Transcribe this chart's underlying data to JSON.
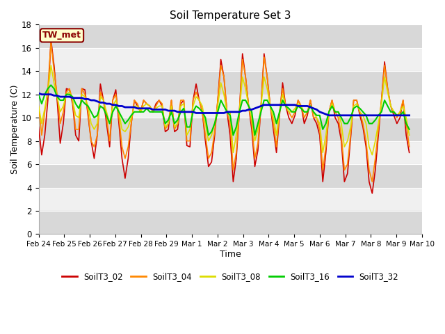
{
  "title": "Soil Temperature Set 3",
  "xlabel": "Time",
  "ylabel": "Soil Temperature (C)",
  "ylim": [
    0,
    18
  ],
  "yticks": [
    0,
    2,
    4,
    6,
    8,
    10,
    12,
    14,
    16,
    18
  ],
  "legend_label": "TW_met",
  "legend_box_color": "#ffffcc",
  "legend_box_edge": "#8b0000",
  "series_colors": {
    "SoilT3_02": "#cc0000",
    "SoilT3_04": "#ff8800",
    "SoilT3_08": "#dddd00",
    "SoilT3_16": "#00cc00",
    "SoilT3_32": "#0000cc"
  },
  "xtick_labels": [
    "Feb 24",
    "Feb 25",
    "Feb 26",
    "Feb 27",
    "Feb 28",
    "Feb 29",
    "Mar 1",
    "Mar 2",
    "Mar 3",
    "Mar 4",
    "Mar 5",
    "Mar 6",
    "Mar 7",
    "Mar 8",
    "Mar 9",
    "Mar 10"
  ],
  "SoilT3_02": [
    9.2,
    6.8,
    8.5,
    11.5,
    16.7,
    14.5,
    11.5,
    7.8,
    9.5,
    12.5,
    12.4,
    11.2,
    8.5,
    8.0,
    12.5,
    12.4,
    10.2,
    8.0,
    6.5,
    8.5,
    12.9,
    11.5,
    9.5,
    7.5,
    11.5,
    12.4,
    9.5,
    6.5,
    4.8,
    6.5,
    9.5,
    11.5,
    11.0,
    10.5,
    11.5,
    11.2,
    11.0,
    10.5,
    11.2,
    11.5,
    11.0,
    8.8,
    9.0,
    11.5,
    8.8,
    9.0,
    11.2,
    11.5,
    7.6,
    7.5,
    11.5,
    12.9,
    11.5,
    10.5,
    8.0,
    5.8,
    6.2,
    8.5,
    11.5,
    15.0,
    13.5,
    10.5,
    8.5,
    4.5,
    6.5,
    10.5,
    15.5,
    13.5,
    11.0,
    9.0,
    5.8,
    7.2,
    11.0,
    15.5,
    13.5,
    11.0,
    9.0,
    7.0,
    10.2,
    13.0,
    11.0,
    10.0,
    9.5,
    10.2,
    11.5,
    11.0,
    9.5,
    10.2,
    11.5,
    10.0,
    9.5,
    8.5,
    4.5,
    7.0,
    10.5,
    11.5,
    10.0,
    9.5,
    8.0,
    4.5,
    5.2,
    8.2,
    11.5,
    11.5,
    10.2,
    9.2,
    7.5,
    4.5,
    3.5,
    5.5,
    8.5,
    11.5,
    14.8,
    12.5,
    11.0,
    10.2,
    9.5,
    10.0,
    11.5,
    8.5,
    7.0
  ],
  "SoilT3_04": [
    11.0,
    8.5,
    10.5,
    12.5,
    16.5,
    14.0,
    12.0,
    9.5,
    10.5,
    12.2,
    12.5,
    11.5,
    9.0,
    9.0,
    12.5,
    12.0,
    10.5,
    8.0,
    7.5,
    8.5,
    12.2,
    11.5,
    10.0,
    8.0,
    11.5,
    12.0,
    10.0,
    7.5,
    6.5,
    7.5,
    9.5,
    11.5,
    11.2,
    10.5,
    11.5,
    11.2,
    11.0,
    10.5,
    11.0,
    11.5,
    11.2,
    9.0,
    9.5,
    11.5,
    9.0,
    9.5,
    11.5,
    11.5,
    8.0,
    8.0,
    11.5,
    12.2,
    11.5,
    10.5,
    8.5,
    6.5,
    7.0,
    8.8,
    11.5,
    14.5,
    13.5,
    10.5,
    9.5,
    5.5,
    7.0,
    10.5,
    15.0,
    13.5,
    11.0,
    9.5,
    6.5,
    7.8,
    11.0,
    15.2,
    13.5,
    11.0,
    9.5,
    7.5,
    10.5,
    12.5,
    11.0,
    10.5,
    10.0,
    10.5,
    11.5,
    11.0,
    10.0,
    10.5,
    11.5,
    10.0,
    10.0,
    9.0,
    5.5,
    7.5,
    10.5,
    11.5,
    10.5,
    10.0,
    8.5,
    5.5,
    6.0,
    8.5,
    11.5,
    11.5,
    10.5,
    9.5,
    8.0,
    5.5,
    4.5,
    6.5,
    9.0,
    11.5,
    14.5,
    12.5,
    11.0,
    10.5,
    10.0,
    10.5,
    11.5,
    9.5,
    7.5
  ],
  "SoilT3_08": [
    11.0,
    9.5,
    10.8,
    12.2,
    14.5,
    13.0,
    11.8,
    10.5,
    11.0,
    12.0,
    12.2,
    11.5,
    10.2,
    10.0,
    12.0,
    11.8,
    11.0,
    9.5,
    9.0,
    9.5,
    11.8,
    11.5,
    10.5,
    9.5,
    11.0,
    11.5,
    10.5,
    9.0,
    8.8,
    9.2,
    10.0,
    11.0,
    11.0,
    10.5,
    11.0,
    11.2,
    11.0,
    10.5,
    10.8,
    11.0,
    11.0,
    9.2,
    9.5,
    11.0,
    9.2,
    9.5,
    11.0,
    11.2,
    8.5,
    9.0,
    11.0,
    11.8,
    11.5,
    11.0,
    9.5,
    8.0,
    8.5,
    9.5,
    11.0,
    13.0,
    12.0,
    10.5,
    10.5,
    7.0,
    8.5,
    10.5,
    13.5,
    12.5,
    11.0,
    10.0,
    8.0,
    9.0,
    11.0,
    13.5,
    12.5,
    11.0,
    10.0,
    8.5,
    10.5,
    12.0,
    11.0,
    10.5,
    10.5,
    10.8,
    11.2,
    11.0,
    10.5,
    10.5,
    11.0,
    10.5,
    10.0,
    9.5,
    7.0,
    8.5,
    10.5,
    11.2,
    10.5,
    10.5,
    9.5,
    7.5,
    8.0,
    9.2,
    11.0,
    11.2,
    10.5,
    10.2,
    9.5,
    7.5,
    6.8,
    8.0,
    9.5,
    11.2,
    13.5,
    12.2,
    11.0,
    10.5,
    10.2,
    10.5,
    11.0,
    10.0,
    8.5
  ],
  "SoilT3_16": [
    12.0,
    11.2,
    12.0,
    12.5,
    12.8,
    12.5,
    11.8,
    11.5,
    11.5,
    12.0,
    12.0,
    11.8,
    11.2,
    10.8,
    11.5,
    11.2,
    11.0,
    10.5,
    10.0,
    10.2,
    11.0,
    10.8,
    10.2,
    9.5,
    10.5,
    11.0,
    10.5,
    10.0,
    9.5,
    9.8,
    10.2,
    10.5,
    10.5,
    10.5,
    10.5,
    10.8,
    10.5,
    10.5,
    10.5,
    10.5,
    10.5,
    9.5,
    9.8,
    10.5,
    9.5,
    9.8,
    10.5,
    10.8,
    9.2,
    9.2,
    10.5,
    11.0,
    10.8,
    10.5,
    10.0,
    8.5,
    8.8,
    9.5,
    10.5,
    11.5,
    11.0,
    10.5,
    10.2,
    8.5,
    9.2,
    10.5,
    11.5,
    11.5,
    11.0,
    10.5,
    8.5,
    9.5,
    10.5,
    11.5,
    11.5,
    11.0,
    10.5,
    9.5,
    10.5,
    11.5,
    11.0,
    10.8,
    10.5,
    10.5,
    11.0,
    10.8,
    10.5,
    10.5,
    11.0,
    10.5,
    10.2,
    10.2,
    9.0,
    9.5,
    10.5,
    11.0,
    10.5,
    10.5,
    10.0,
    9.5,
    9.5,
    10.0,
    10.8,
    11.0,
    10.8,
    10.5,
    10.2,
    9.5,
    9.5,
    9.8,
    10.2,
    10.5,
    11.5,
    11.0,
    10.5,
    10.5,
    10.2,
    10.2,
    10.5,
    9.5,
    9.0
  ],
  "SoilT3_32": [
    12.1,
    12.0,
    12.0,
    12.0,
    12.0,
    11.9,
    11.9,
    11.8,
    11.8,
    11.8,
    11.8,
    11.7,
    11.7,
    11.7,
    11.7,
    11.6,
    11.6,
    11.5,
    11.5,
    11.4,
    11.3,
    11.3,
    11.2,
    11.2,
    11.1,
    11.1,
    11.0,
    11.0,
    10.9,
    10.9,
    10.9,
    10.9,
    10.8,
    10.8,
    10.8,
    10.8,
    10.8,
    10.7,
    10.7,
    10.7,
    10.7,
    10.7,
    10.6,
    10.6,
    10.6,
    10.5,
    10.5,
    10.5,
    10.5,
    10.5,
    10.5,
    10.4,
    10.4,
    10.4,
    10.4,
    10.4,
    10.4,
    10.4,
    10.4,
    10.4,
    10.4,
    10.5,
    10.5,
    10.5,
    10.5,
    10.5,
    10.6,
    10.6,
    10.7,
    10.7,
    10.8,
    10.9,
    11.0,
    11.1,
    11.1,
    11.1,
    11.1,
    11.1,
    11.1,
    11.1,
    11.1,
    11.1,
    11.1,
    11.1,
    11.0,
    11.0,
    11.0,
    11.0,
    10.9,
    10.8,
    10.7,
    10.5,
    10.4,
    10.3,
    10.2,
    10.2,
    10.2,
    10.2,
    10.2,
    10.2,
    10.2,
    10.2,
    10.2,
    10.2,
    10.2,
    10.2,
    10.2,
    10.2,
    10.2,
    10.2,
    10.2,
    10.2,
    10.2,
    10.2,
    10.2,
    10.2,
    10.2,
    10.2,
    10.2,
    10.2,
    10.2
  ]
}
